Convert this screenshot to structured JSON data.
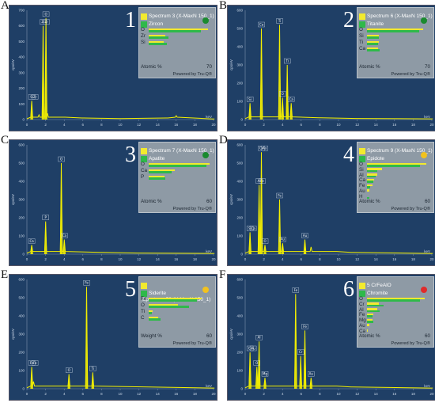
{
  "figure_letters": [
    "A",
    "B",
    "C",
    "D",
    "E",
    "F"
  ],
  "panels": [
    {
      "letter": "A",
      "number": "1",
      "spectrum": "Spectrum 3 (X-MaxN 150_1)",
      "mineral": "Zircon",
      "dot_color": "#1a8a2e",
      "basis": "Atomic %",
      "max": "70",
      "elements": [
        {
          "el": "O",
          "v1": 66,
          "v2": 58
        },
        {
          "el": "Zr",
          "v1": 18,
          "v2": 22
        },
        {
          "el": "Si",
          "v1": 17,
          "v2": 20
        }
      ],
      "peak_labels": [
        "Si",
        "Zr",
        "O",
        "Zr",
        "Zr"
      ]
    },
    {
      "letter": "B",
      "number": "2",
      "spectrum": "Spectrum 6 (X-MaxN 150_1)",
      "mineral": "Titanite",
      "dot_color": "#1a8a2e",
      "basis": "Atomic %",
      "max": "70",
      "elements": [
        {
          "el": "O",
          "v1": 62,
          "v2": 58
        },
        {
          "el": "Si",
          "v1": 13,
          "v2": 13
        },
        {
          "el": "Ti",
          "v1": 13,
          "v2": 12
        },
        {
          "el": "Ca",
          "v1": 12,
          "v2": 14
        }
      ],
      "peak_labels": [
        "Si",
        "Ca",
        "Ti",
        "O",
        "Ti",
        "Ca"
      ]
    },
    {
      "letter": "C",
      "number": "3",
      "spectrum": "Spectrum 7 (X-MaxN 150_1)",
      "mineral": "Apatite",
      "dot_color": "#1a8a2e",
      "basis": "Atomic %",
      "max": "60",
      "elements": [
        {
          "el": "O",
          "v1": 58,
          "v2": 55
        },
        {
          "el": "Ca",
          "v1": 25,
          "v2": 22
        },
        {
          "el": "P",
          "v1": 15,
          "v2": 16
        }
      ],
      "peak_labels": [
        "Ca",
        "P",
        "O",
        "Ca"
      ]
    },
    {
      "letter": "D",
      "number": "4",
      "spectrum": "Spectrum 9 (X-MaxN 150_1)",
      "mineral": "Epidote",
      "dot_color": "#f2c21f",
      "basis": "Atomic %",
      "max": "60",
      "elements": [
        {
          "el": "O",
          "v1": 56,
          "v2": 50
        },
        {
          "el": "Si",
          "v1": 14,
          "v2": 10
        },
        {
          "el": "Al",
          "v1": 10,
          "v2": 8
        },
        {
          "el": "Ca",
          "v1": 7,
          "v2": 6
        },
        {
          "el": "Fe",
          "v1": 5,
          "v2": 3
        },
        {
          "el": "Au",
          "v1": 2,
          "v2": 0
        },
        {
          "el": "H",
          "v1": 0,
          "v2": 2
        }
      ],
      "peak_labels": [
        "Si",
        "Al",
        "Ca",
        "O",
        "Fe",
        "Au",
        "Au",
        "Ca",
        "Fe",
        "Au"
      ]
    },
    {
      "letter": "E",
      "number": "5",
      "spectrum": "Spectrum 59 (X-MaxN 150_1)",
      "mineral": "Siderite",
      "dot_color": "#f2c21f",
      "basis": "Weight %",
      "max": "60",
      "elements": [
        {
          "el": "Fe",
          "v1": 50,
          "v2": 46
        },
        {
          "el": "O",
          "v1": 28,
          "v2": 38
        },
        {
          "el": "Ti",
          "v1": 4,
          "v2": 3
        },
        {
          "el": "C",
          "v1": 9,
          "v2": 11
        }
      ],
      "peak_labels": [
        "Fe",
        "O",
        "Fe",
        "Ti",
        "Fe"
      ]
    },
    {
      "letter": "F",
      "number": "6",
      "spectrum": "5 CrFeAlO",
      "mineral": "Chromite",
      "dot_color": "#e02b2b",
      "basis": "Atomic %",
      "max": "60",
      "elements": [
        {
          "el": "O",
          "v1": 55,
          "v2": 50
        },
        {
          "el": "Cr",
          "v1": 11,
          "v2": 16
        },
        {
          "el": "Al",
          "v1": 10,
          "v2": 12
        },
        {
          "el": "Fe",
          "v1": 6,
          "v2": 5
        },
        {
          "el": "Mg",
          "v1": 5,
          "v2": 6
        },
        {
          "el": "Au",
          "v1": 2,
          "v2": 0
        },
        {
          "el": "Ca",
          "v1": 1,
          "v2": 0
        }
      ],
      "peak_labels": [
        "Cr",
        "O",
        "Al",
        "Mg",
        "Fe",
        "Cr",
        "Fe",
        "Au",
        "Au"
      ]
    }
  ],
  "powered_by": "Powered by Tru-Q®",
  "y_axis_label": "cps/eV",
  "x_axis_unit": "keV",
  "colors": {
    "plot_bg": "#1f3f66",
    "spectrum": "#f4f000",
    "legend_bg": "#8e9aa5",
    "bar_measured": "#f2ea2e",
    "bar_reference": "#2fb94a"
  },
  "chart_data": [
    {
      "type": "line",
      "title": "",
      "xlabel": "keV",
      "ylabel": "cps/eV",
      "xlim": [
        0,
        20
      ],
      "ylim": [
        0,
        700
      ],
      "series": [
        {
          "x": [
            0,
            0.52,
            1.3,
            1.74,
            2.04,
            2.2,
            4.0,
            6.0,
            8.0,
            10.0,
            15.0,
            16.0,
            20.0
          ],
          "values": [
            5,
            120,
            30,
            600,
            650,
            40,
            15,
            10,
            8,
            6,
            10,
            25,
            4
          ]
        }
      ]
    },
    {
      "type": "line",
      "title": "",
      "xlabel": "keV",
      "ylabel": "cps/eV",
      "xlim": [
        0,
        20
      ],
      "ylim": [
        0,
        600
      ],
      "series": [
        {
          "x": [
            0,
            0.52,
            1.74,
            3.69,
            4.0,
            4.51,
            4.93,
            8.0,
            12.0,
            20.0
          ],
          "values": [
            5,
            90,
            500,
            520,
            120,
            300,
            90,
            10,
            6,
            4
          ]
        }
      ]
    },
    {
      "type": "line",
      "title": "",
      "xlabel": "keV",
      "ylabel": "cps/eV",
      "xlim": [
        0,
        20
      ],
      "ylim": [
        0,
        600
      ],
      "series": [
        {
          "x": [
            0,
            0.52,
            2.01,
            3.69,
            4.01,
            8.0,
            12.0,
            20.0
          ],
          "values": [
            5,
            50,
            180,
            500,
            80,
            10,
            6,
            4
          ]
        }
      ]
    },
    {
      "type": "line",
      "title": "",
      "xlabel": "keV",
      "ylabel": "cps/eV",
      "xlim": [
        0,
        20
      ],
      "ylim": [
        0,
        600
      ],
      "series": [
        {
          "x": [
            0,
            0.52,
            1.49,
            1.74,
            2.12,
            3.69,
            4.01,
            6.4,
            7.06,
            9.71,
            11.44,
            20.0
          ],
          "values": [
            5,
            120,
            380,
            560,
            50,
            300,
            60,
            80,
            40,
            15,
            10,
            4
          ]
        }
      ]
    },
    {
      "type": "line",
      "title": "",
      "xlabel": "keV",
      "ylabel": "cps/eV",
      "xlim": [
        0,
        20
      ],
      "ylim": [
        0,
        600
      ],
      "series": [
        {
          "x": [
            0,
            0.52,
            0.71,
            4.51,
            6.4,
            7.06,
            20.0
          ],
          "values": [
            5,
            120,
            40,
            80,
            560,
            90,
            4
          ]
        }
      ]
    },
    {
      "type": "line",
      "title": "",
      "xlabel": "keV",
      "ylabel": "cps/eV",
      "xlim": [
        0,
        20
      ],
      "ylim": [
        0,
        600
      ],
      "series": [
        {
          "x": [
            0,
            0.52,
            1.25,
            1.49,
            2.12,
            5.41,
            5.95,
            6.4,
            7.06,
            9.71,
            11.44,
            20.0
          ],
          "values": [
            5,
            200,
            120,
            260,
            60,
            520,
            180,
            320,
            60,
            15,
            10,
            4
          ]
        }
      ]
    }
  ]
}
